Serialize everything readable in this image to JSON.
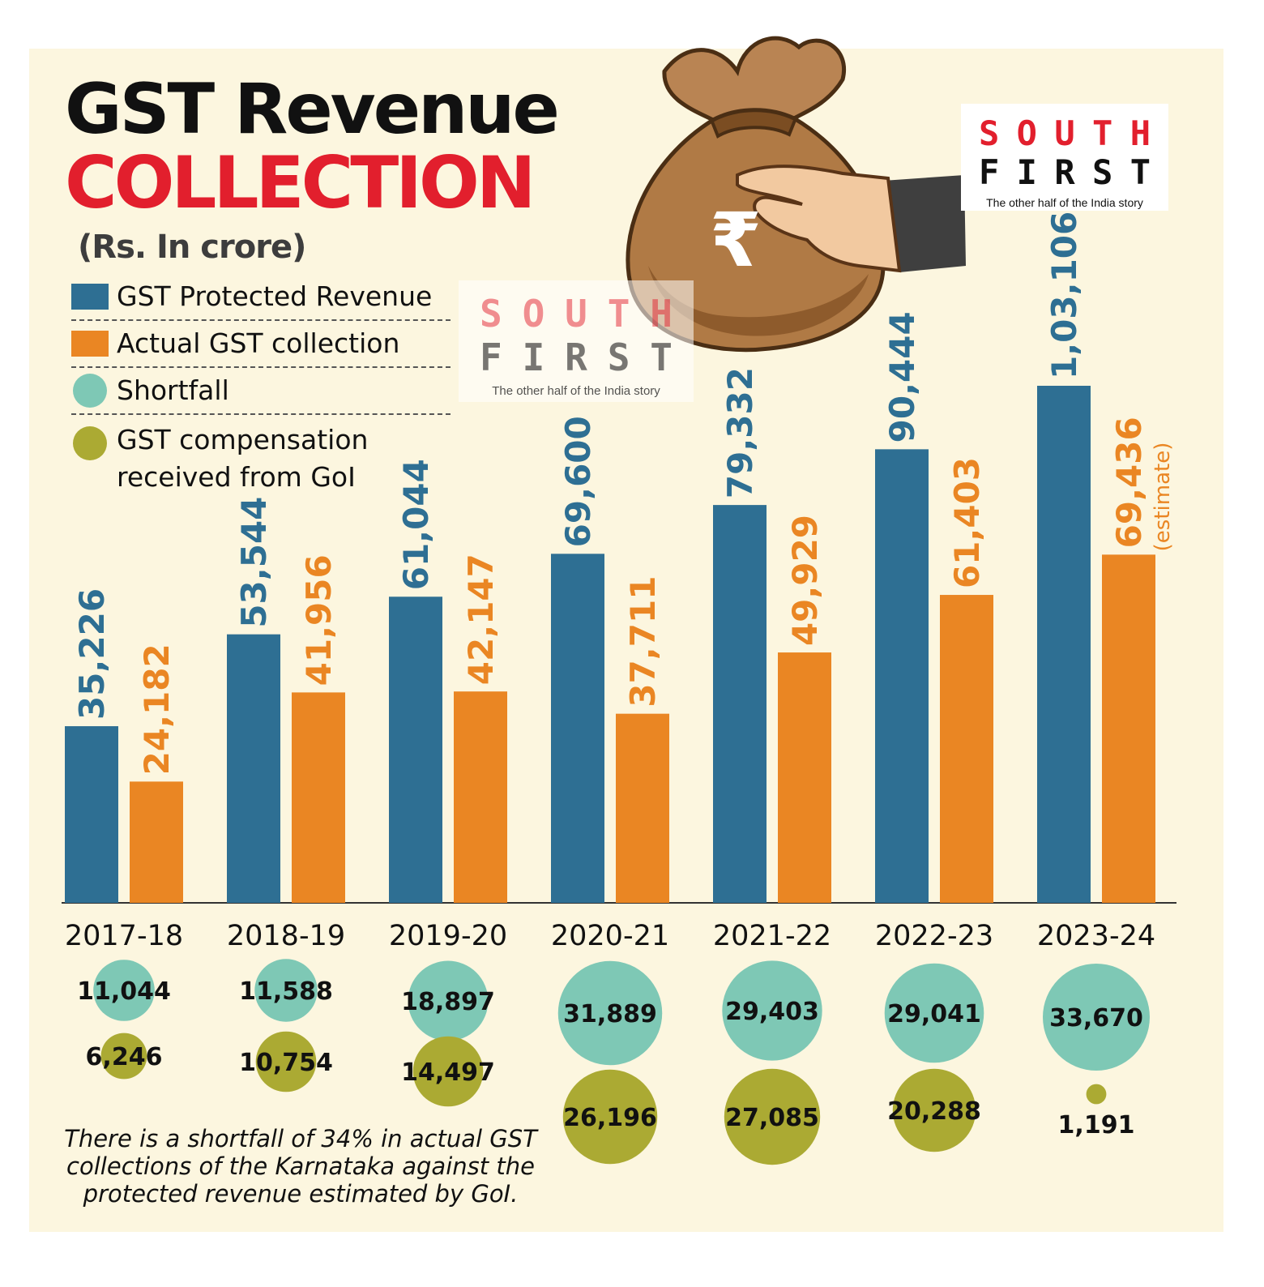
{
  "title_line1": "GST Revenue",
  "title_line2": "COLLECTION",
  "unit": "(Rs. In crore)",
  "legend": [
    {
      "label": "GST Protected Revenue",
      "shape": "square",
      "color": "#2e6f93"
    },
    {
      "label": "Actual GST collection",
      "shape": "square",
      "color": "#ea8623"
    },
    {
      "label": "Shortfall",
      "shape": "circle",
      "color": "#7ec8b5"
    },
    {
      "label": "GST compensation received from GoI",
      "shape": "circle",
      "color": "#abaa33"
    }
  ],
  "logo": {
    "line1": [
      "S",
      "O",
      "U",
      "T",
      "H"
    ],
    "line2": [
      "F",
      "I",
      "R",
      "S",
      "T"
    ],
    "tagline": "The other half of the India story"
  },
  "footnote": "There is a shortfall of 34% in actual GST collections of the Karnataka against the protected revenue estimated by GoI.",
  "colors": {
    "protected": "#2e6f93",
    "actual": "#ea8623",
    "shortfall": "#7ec8b5",
    "compensation": "#abaa33",
    "background": "#fcf6df",
    "accent_red": "#e21f2d"
  },
  "chart_data": {
    "type": "bar",
    "categories": [
      "2017-18",
      "2018-19",
      "2019-20",
      "2020-21",
      "2021-22",
      "2022-23",
      "2023-24"
    ],
    "series": [
      {
        "name": "GST Protected Revenue",
        "values": [
          35226,
          53544,
          61044,
          69600,
          79332,
          90444,
          103106
        ],
        "labels": [
          "35,226",
          "53,544",
          "61,044",
          "69,600",
          "79,332",
          "90,444",
          "1,03,106"
        ]
      },
      {
        "name": "Actual GST collection",
        "values": [
          24182,
          41956,
          42147,
          37711,
          49929,
          61403,
          69436
        ],
        "labels": [
          "24,182",
          "41,956",
          "42,147",
          "37,711",
          "49,929",
          "61,403",
          "69,436"
        ]
      },
      {
        "name": "Shortfall",
        "values": [
          11044,
          11588,
          18897,
          31889,
          29403,
          29041,
          33670
        ],
        "labels": [
          "11,044",
          "11,588",
          "18,897",
          "31,889",
          "29,403",
          "29,041",
          "33,670"
        ]
      },
      {
        "name": "GST compensation received from GoI",
        "values": [
          6246,
          10754,
          14497,
          26196,
          27085,
          20288,
          1191
        ],
        "labels": [
          "6,246",
          "10,754",
          "14,497",
          "26,196",
          "27,085",
          "20,288",
          "1,191"
        ]
      }
    ],
    "annotations": [
      {
        "category": "2023-24",
        "series": "Actual GST collection",
        "text": "(estimate)"
      }
    ],
    "ylim": [
      0,
      103106
    ],
    "grid": false,
    "legend_position": "top-left"
  }
}
